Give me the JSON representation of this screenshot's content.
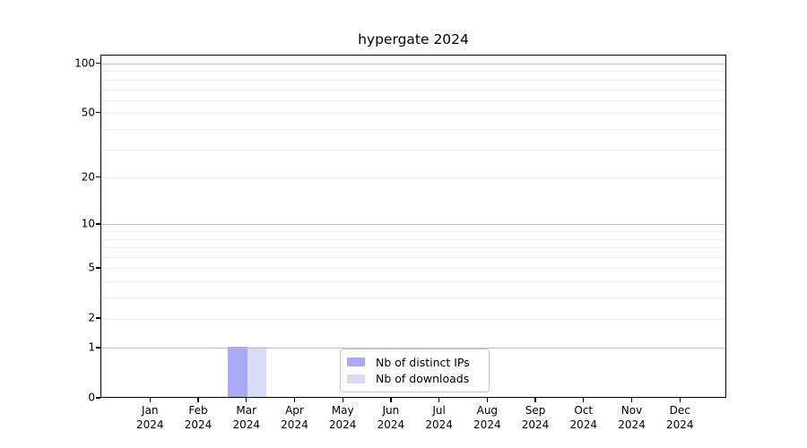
{
  "figure": {
    "title": "hypergate 2024",
    "background": "#ffffff"
  },
  "chart_data": {
    "type": "bar",
    "title": "hypergate 2024",
    "categories": [
      "Jan 2024",
      "Feb 2024",
      "Mar 2024",
      "Apr 2024",
      "May 2024",
      "Jun 2024",
      "Jul 2024",
      "Aug 2024",
      "Sep 2024",
      "Oct 2024",
      "Nov 2024",
      "Dec 2024"
    ],
    "series": [
      {
        "name": "Nb of distinct IPs",
        "color": "#a9a9f6",
        "values": [
          0,
          0,
          1,
          0,
          0,
          0,
          0,
          0,
          0,
          0,
          0,
          0
        ]
      },
      {
        "name": "Nb of downloads",
        "color": "#dadaf9",
        "values": [
          0,
          0,
          1,
          0,
          0,
          0,
          0,
          0,
          0,
          0,
          0,
          0
        ]
      }
    ],
    "xlabel": "",
    "ylabel": "",
    "yscale": "log1p",
    "ylim": [
      0,
      112.6
    ],
    "yticks": [
      0,
      1,
      2,
      5,
      10,
      20,
      50,
      100
    ],
    "minor_yticks": [
      3,
      4,
      6,
      7,
      8,
      9,
      30,
      40,
      60,
      70,
      80,
      90
    ],
    "decade_ticks": [
      1,
      10,
      100
    ],
    "grid": "horizontal",
    "legend_position": "lower center"
  },
  "colors": {
    "axis": "#000000",
    "grid_major": "#bdbdbd",
    "grid_minor": "#ececec",
    "legend_border": "#c9c9c9",
    "text": "#000000"
  }
}
